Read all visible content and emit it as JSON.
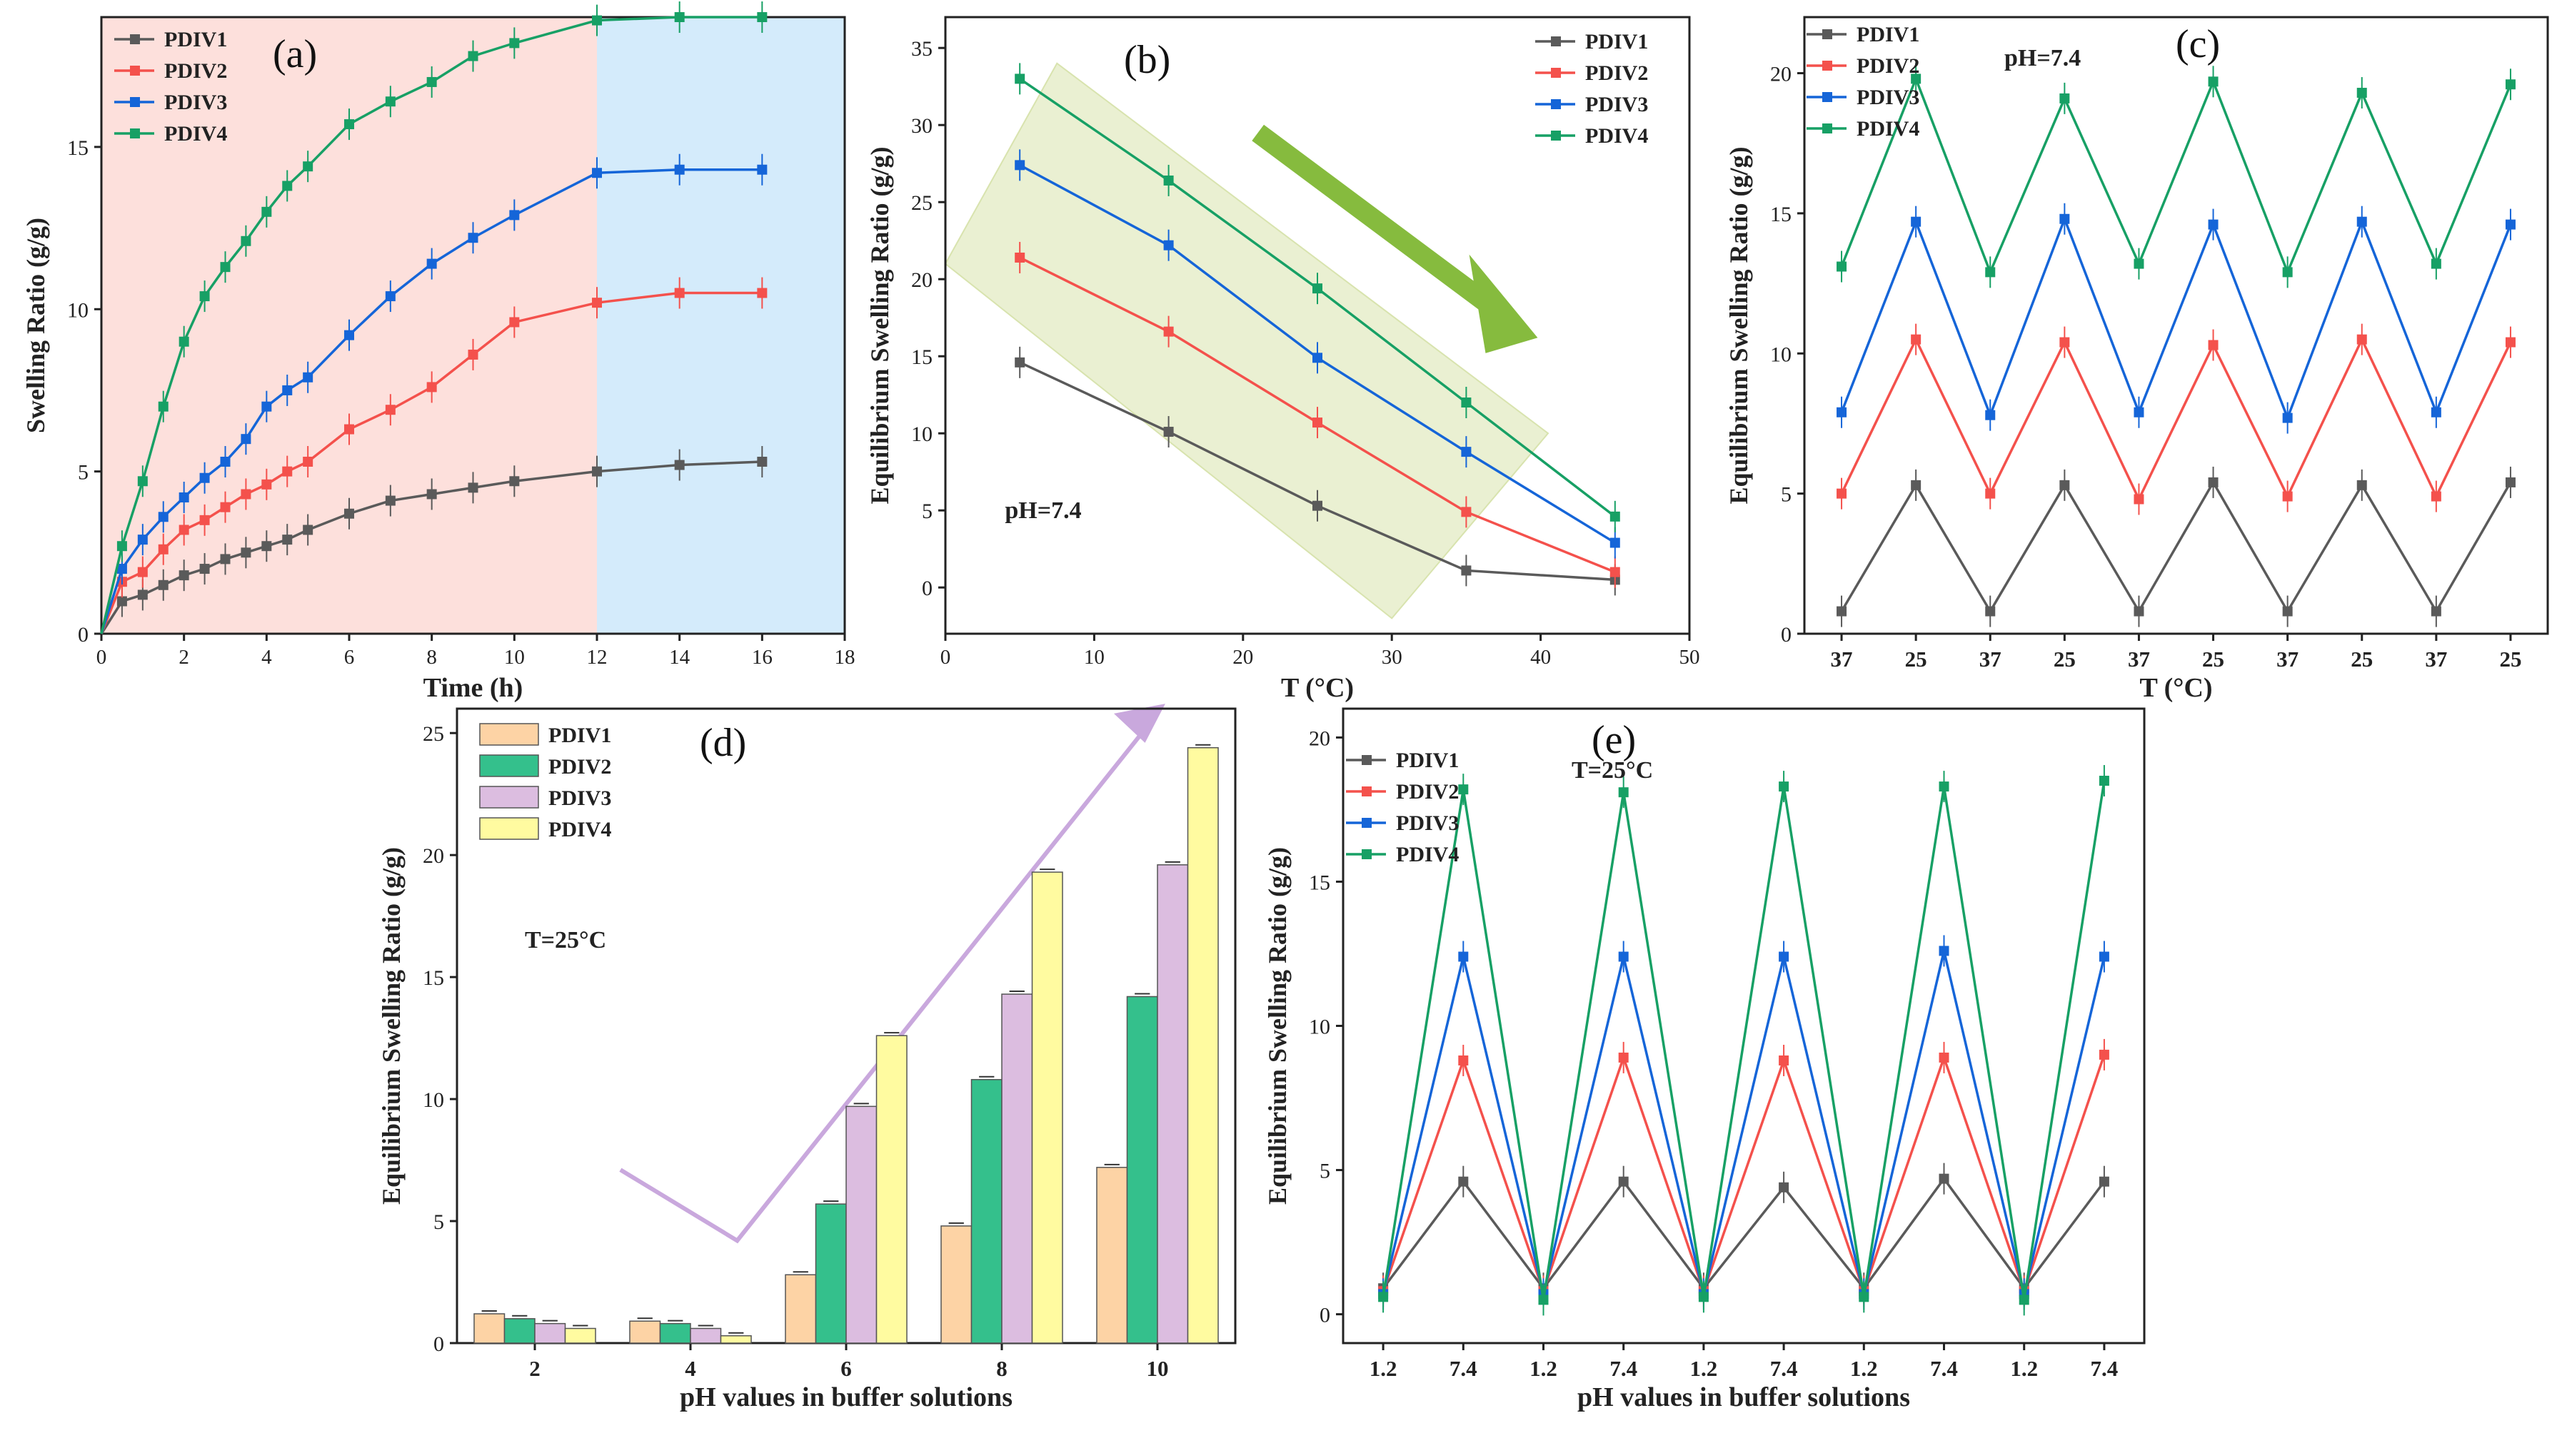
{
  "colors": {
    "PDIV1": "#5a5a5a",
    "PDIV2": "#f4514c",
    "PDIV3": "#1565d8",
    "PDIV4": "#17a065",
    "bar_PDIV1": "#fdd3a5",
    "bar_PDIV2": "#34c08c",
    "bar_PDIV3": "#dcbde0",
    "bar_PDIV4": "#fffba0",
    "bg_pink": "#fde0dc",
    "bg_blue": "#d4ebfb",
    "band_green": "#eaf0d2",
    "arrow_green": "#86bb3e",
    "arrow_violet": "#c9a8dd"
  },
  "chart_data": [
    {
      "id": "a",
      "type": "line",
      "panel_label": "(a)",
      "xlabel": "Time (h)",
      "ylabel": "Swelling Ratio (g/g)",
      "xlim": [
        0,
        18
      ],
      "ylim": [
        0,
        19
      ],
      "x_ticks": [
        0,
        2,
        4,
        6,
        8,
        10,
        12,
        14,
        16,
        18
      ],
      "y_ticks": [
        0,
        5,
        10,
        15
      ],
      "x_tick_labels": [
        "0",
        "2",
        "4",
        "6",
        "8",
        "10",
        "12",
        "14",
        "16",
        "18"
      ],
      "y_tick_labels": [
        "0",
        "5",
        "10",
        "15"
      ],
      "shaded_regions": [
        {
          "from": 0,
          "to": 12,
          "color": "#fde0dc"
        },
        {
          "from": 12,
          "to": 18,
          "color": "#d4ebfb"
        }
      ],
      "legend": "top-left",
      "series": [
        {
          "name": "PDIV1",
          "x": [
            0,
            0.5,
            1,
            1.5,
            2,
            2.5,
            3,
            3.5,
            4,
            4.5,
            5,
            6,
            7,
            8,
            9,
            10,
            12,
            14,
            16
          ],
          "values": [
            0,
            1.0,
            1.2,
            1.5,
            1.8,
            2.0,
            2.3,
            2.5,
            2.7,
            2.9,
            3.2,
            3.7,
            4.1,
            4.3,
            4.5,
            4.7,
            5.0,
            5.2,
            5.3
          ]
        },
        {
          "name": "PDIV2",
          "x": [
            0,
            0.5,
            1,
            1.5,
            2,
            2.5,
            3,
            3.5,
            4,
            4.5,
            5,
            6,
            7,
            8,
            9,
            10,
            12,
            14,
            16
          ],
          "values": [
            0,
            1.6,
            1.9,
            2.6,
            3.2,
            3.5,
            3.9,
            4.3,
            4.6,
            5.0,
            5.3,
            6.3,
            6.9,
            7.6,
            8.6,
            9.6,
            10.2,
            10.5,
            10.5
          ]
        },
        {
          "name": "PDIV3",
          "x": [
            0,
            0.5,
            1,
            1.5,
            2,
            2.5,
            3,
            3.5,
            4,
            4.5,
            5,
            6,
            7,
            8,
            9,
            10,
            12,
            14,
            16
          ],
          "values": [
            0,
            2.0,
            2.9,
            3.6,
            4.2,
            4.8,
            5.3,
            6.0,
            7.0,
            7.5,
            7.9,
            9.2,
            10.4,
            11.4,
            12.2,
            12.9,
            14.2,
            14.3,
            14.3
          ]
        },
        {
          "name": "PDIV4",
          "x": [
            0,
            0.5,
            1,
            1.5,
            2,
            2.5,
            3,
            3.5,
            4,
            4.5,
            5,
            6,
            7,
            8,
            9,
            10,
            12,
            14,
            16
          ],
          "values": [
            0,
            2.7,
            4.7,
            7.0,
            9.0,
            10.4,
            11.3,
            12.1,
            13.0,
            13.8,
            14.4,
            15.7,
            16.4,
            17.0,
            17.8,
            18.2,
            18.9,
            19.0,
            19.0
          ]
        }
      ]
    },
    {
      "id": "b",
      "type": "line",
      "panel_label": "(b)",
      "xlabel": "T (°C)",
      "ylabel": "Equilibrium Swelling Ratio (g/g)",
      "annotation": "pH=7.4",
      "xlim": [
        0,
        50
      ],
      "ylim": [
        -3,
        37
      ],
      "x_ticks": [
        0,
        10,
        20,
        30,
        40,
        50
      ],
      "y_ticks": [
        0,
        5,
        10,
        15,
        20,
        25,
        30,
        35
      ],
      "x_tick_labels": [
        "0",
        "10",
        "20",
        "30",
        "40",
        "50"
      ],
      "y_tick_labels": [
        "0",
        "5",
        "10",
        "15",
        "20",
        "25",
        "30",
        "35"
      ],
      "legend": "top-right",
      "series": [
        {
          "name": "PDIV1",
          "x": [
            5,
            15,
            25,
            35,
            45
          ],
          "values": [
            14.6,
            10.1,
            5.3,
            1.1,
            0.5
          ]
        },
        {
          "name": "PDIV2",
          "x": [
            5,
            15,
            25,
            35,
            45
          ],
          "values": [
            21.4,
            16.6,
            10.7,
            4.9,
            1.0
          ]
        },
        {
          "name": "PDIV3",
          "x": [
            5,
            15,
            25,
            35,
            45
          ],
          "values": [
            27.4,
            22.2,
            14.9,
            8.8,
            2.9
          ]
        },
        {
          "name": "PDIV4",
          "x": [
            5,
            15,
            25,
            35,
            45
          ],
          "values": [
            33.0,
            26.4,
            19.4,
            12.0,
            4.6
          ]
        }
      ]
    },
    {
      "id": "c",
      "type": "line",
      "panel_label": "(c)",
      "xlabel": "T (°C)",
      "ylabel": "Equilibrium Swelling Ratio (g/g)",
      "annotation": "pH=7.4",
      "ylim": [
        0,
        22
      ],
      "categories": [
        "37",
        "25",
        "37",
        "25",
        "37",
        "25",
        "37",
        "25",
        "37",
        "25"
      ],
      "y_ticks": [
        0,
        5,
        10,
        15,
        20
      ],
      "y_tick_labels": [
        "0",
        "5",
        "10",
        "15",
        "20"
      ],
      "legend": "top-left",
      "series": [
        {
          "name": "PDIV1",
          "values": [
            0.8,
            5.3,
            0.8,
            5.3,
            0.8,
            5.4,
            0.8,
            5.3,
            0.8,
            5.4
          ]
        },
        {
          "name": "PDIV2",
          "values": [
            5.0,
            10.5,
            5.0,
            10.4,
            4.8,
            10.3,
            4.9,
            10.5,
            4.9,
            10.4
          ]
        },
        {
          "name": "PDIV3",
          "values": [
            7.9,
            14.7,
            7.8,
            14.8,
            7.9,
            14.6,
            7.7,
            14.7,
            7.9,
            14.6
          ]
        },
        {
          "name": "PDIV4",
          "values": [
            13.1,
            19.8,
            12.9,
            19.1,
            13.2,
            19.7,
            12.9,
            19.3,
            13.2,
            19.6
          ]
        }
      ]
    },
    {
      "id": "d",
      "type": "bar",
      "panel_label": "(d)",
      "xlabel": "pH values in buffer solutions",
      "ylabel": "Equilibrium Swelling Ratio (g/g)",
      "annotation": "T=25°C",
      "ylim": [
        0,
        26
      ],
      "categories": [
        "2",
        "4",
        "6",
        "8",
        "10"
      ],
      "y_ticks": [
        0,
        5,
        10,
        15,
        20,
        25
      ],
      "y_tick_labels": [
        "0",
        "5",
        "10",
        "15",
        "20",
        "25"
      ],
      "legend": "top-left",
      "series": [
        {
          "name": "PDIV1",
          "values": [
            1.2,
            0.9,
            2.8,
            4.8,
            7.2
          ]
        },
        {
          "name": "PDIV2",
          "values": [
            1.0,
            0.8,
            5.7,
            10.8,
            14.2
          ]
        },
        {
          "name": "PDIV3",
          "values": [
            0.8,
            0.6,
            9.7,
            14.3,
            19.6
          ]
        },
        {
          "name": "PDIV4",
          "values": [
            0.6,
            0.3,
            12.6,
            19.3,
            24.4
          ]
        }
      ]
    },
    {
      "id": "e",
      "type": "line",
      "panel_label": "(e)",
      "xlabel": "pH values in buffer solutions",
      "ylabel": "Equilibrium Swelling Ratio (g/g)",
      "annotation": "T=25°C",
      "ylim": [
        -1,
        21
      ],
      "categories": [
        "1.2",
        "7.4",
        "1.2",
        "7.4",
        "1.2",
        "7.4",
        "1.2",
        "7.4",
        "1.2",
        "7.4"
      ],
      "y_ticks": [
        0,
        5,
        10,
        15,
        20
      ],
      "y_tick_labels": [
        "0",
        "5",
        "10",
        "15",
        "20"
      ],
      "legend": "top-left",
      "series": [
        {
          "name": "PDIV1",
          "values": [
            0.9,
            4.6,
            0.9,
            4.6,
            0.9,
            4.4,
            0.9,
            4.7,
            0.9,
            4.6
          ]
        },
        {
          "name": "PDIV2",
          "values": [
            0.8,
            8.8,
            0.8,
            8.9,
            0.8,
            8.8,
            0.8,
            8.9,
            0.8,
            9.0
          ]
        },
        {
          "name": "PDIV3",
          "values": [
            0.7,
            12.4,
            0.7,
            12.4,
            0.7,
            12.4,
            0.7,
            12.6,
            0.7,
            12.4
          ]
        },
        {
          "name": "PDIV4",
          "values": [
            0.6,
            18.2,
            0.5,
            18.1,
            0.6,
            18.3,
            0.6,
            18.3,
            0.5,
            18.5
          ]
        }
      ]
    }
  ]
}
